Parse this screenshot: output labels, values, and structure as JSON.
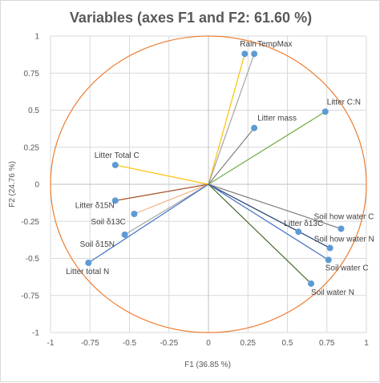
{
  "chart_data": {
    "type": "scatter",
    "subtype": "correlation-circle",
    "title": "Variables (axes F1 and F2: 61.60 %)",
    "xlabel": "F1 (36.85 %)",
    "ylabel": "F2 (24.76 %)",
    "xlim": [
      -1,
      1
    ],
    "ylim": [
      -1,
      1
    ],
    "xticks": [
      "-1",
      "-0.75",
      "-0.5",
      "-0.25",
      "0",
      "0.25",
      "0.5",
      "0.75",
      "1"
    ],
    "yticks": [
      "1",
      "0.75",
      "0.5",
      "0.25",
      "0",
      "-0.25",
      "-0.5",
      "-0.75",
      "-1"
    ],
    "grid": true,
    "circle_color": "#ED7D31",
    "marker_color": "#5B9BD5",
    "points": [
      {
        "name": "Rain",
        "x": 0.23,
        "y": 0.88,
        "color": "#FFC000"
      },
      {
        "name": "TempMax",
        "x": 0.29,
        "y": 0.88,
        "color": "#A5A5A5"
      },
      {
        "name": "Litter C:N",
        "x": 0.74,
        "y": 0.49,
        "color": "#70AD47"
      },
      {
        "name": "Litter mass",
        "x": 0.29,
        "y": 0.38,
        "color": "#7F7F7F"
      },
      {
        "name": "Litter Total C",
        "x": -0.59,
        "y": 0.13,
        "color": "#FFC000"
      },
      {
        "name": "Litter δ15N",
        "x": -0.59,
        "y": -0.11,
        "color": "#A5502A"
      },
      {
        "name": "Soil δ13C",
        "x": -0.47,
        "y": -0.2,
        "color": "#F4B183"
      },
      {
        "name": "Soil δ15N",
        "x": -0.53,
        "y": -0.34,
        "color": "#A5A5A5"
      },
      {
        "name": "Litter total N",
        "x": -0.76,
        "y": -0.53,
        "color": "#4472C4"
      },
      {
        "name": "Soil how water C",
        "x": 0.84,
        "y": -0.3,
        "color": "#7F7F7F"
      },
      {
        "name": "Litter δ13C",
        "x": 0.57,
        "y": -0.32,
        "color": "#C0C0C0"
      },
      {
        "name": "Soil how water N",
        "x": 0.77,
        "y": -0.43,
        "color": "#264478"
      },
      {
        "name": "Soil water C",
        "x": 0.76,
        "y": -0.51,
        "color": "#4472C4"
      },
      {
        "name": "Soil water N",
        "x": 0.65,
        "y": -0.67,
        "color": "#43682B"
      }
    ]
  }
}
